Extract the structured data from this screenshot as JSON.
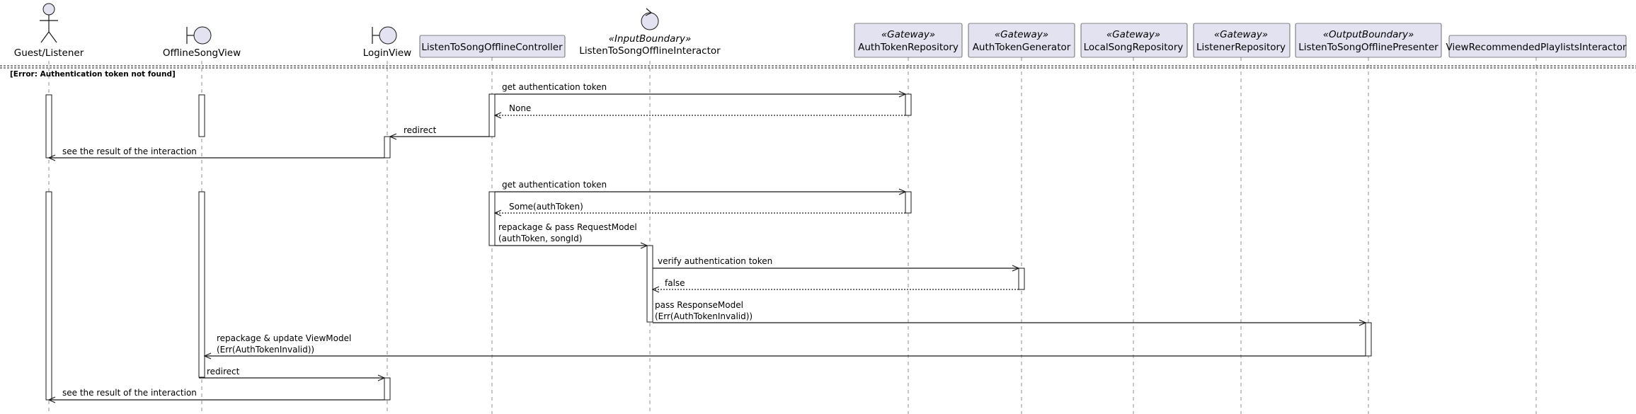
{
  "diagram": {
    "section_label": "[Error: Authentication token not found]",
    "participants": [
      {
        "id": "guest",
        "label": "Guest/Listener",
        "kind": "actor",
        "stereotype": ""
      },
      {
        "id": "offline_view",
        "label": "OfflineSongView",
        "kind": "boundary",
        "stereotype": ""
      },
      {
        "id": "login_view",
        "label": "LoginView",
        "kind": "boundary",
        "stereotype": ""
      },
      {
        "id": "controller",
        "label": "ListenToSongOfflineController",
        "kind": "participant",
        "stereotype": ""
      },
      {
        "id": "interactor",
        "label": "ListenToSongOfflineInteractor",
        "kind": "control",
        "stereotype": "«InputBoundary»"
      },
      {
        "id": "auth_repo",
        "label": "AuthTokenRepository",
        "kind": "participant",
        "stereotype": "«Gateway»"
      },
      {
        "id": "auth_gen",
        "label": "AuthTokenGenerator",
        "kind": "participant",
        "stereotype": "«Gateway»"
      },
      {
        "id": "local_repo",
        "label": "LocalSongRepository",
        "kind": "participant",
        "stereotype": "«Gateway»"
      },
      {
        "id": "listener_repo",
        "label": "ListenerRepository",
        "kind": "participant",
        "stereotype": "«Gateway»"
      },
      {
        "id": "presenter",
        "label": "ListenToSongOfflinePresenter",
        "kind": "participant",
        "stereotype": "«OutputBoundary»"
      },
      {
        "id": "recommended",
        "label": "ViewRecommendedPlaylistsInteractor",
        "kind": "participant",
        "stereotype": ""
      }
    ],
    "messages": [
      {
        "from": "controller",
        "to": "auth_repo",
        "lines": [
          "get authentication token"
        ],
        "style": "sync"
      },
      {
        "from": "auth_repo",
        "to": "controller",
        "lines": [
          "None"
        ],
        "style": "return"
      },
      {
        "from": "controller",
        "to": "login_view",
        "lines": [
          "redirect"
        ],
        "style": "sync"
      },
      {
        "from": "login_view",
        "to": "guest",
        "lines": [
          "see the result of the interaction"
        ],
        "style": "sync"
      },
      {
        "from": "controller",
        "to": "auth_repo",
        "lines": [
          "get authentication token"
        ],
        "style": "sync"
      },
      {
        "from": "auth_repo",
        "to": "controller",
        "lines": [
          "Some(authToken)"
        ],
        "style": "return"
      },
      {
        "from": "controller",
        "to": "interactor",
        "lines": [
          "repackage & pass RequestModel",
          "(authToken, songId)"
        ],
        "style": "sync"
      },
      {
        "from": "interactor",
        "to": "auth_gen",
        "lines": [
          "verify authentication token"
        ],
        "style": "sync"
      },
      {
        "from": "auth_gen",
        "to": "interactor",
        "lines": [
          "false"
        ],
        "style": "return"
      },
      {
        "from": "interactor",
        "to": "presenter",
        "lines": [
          "pass ResponseModel",
          "(Err(AuthTokenInvalid))"
        ],
        "style": "async"
      },
      {
        "from": "presenter",
        "to": "offline_view",
        "lines": [
          "repackage & update ViewModel",
          "(Err(AuthTokenInvalid))"
        ],
        "style": "async"
      },
      {
        "from": "offline_view",
        "to": "login_view",
        "lines": [
          "redirect"
        ],
        "style": "sync"
      },
      {
        "from": "login_view",
        "to": "guest",
        "lines": [
          "see the result of the interaction"
        ],
        "style": "sync"
      }
    ]
  }
}
